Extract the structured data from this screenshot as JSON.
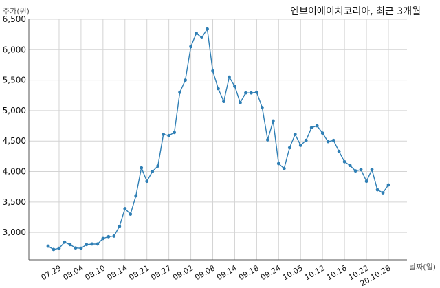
{
  "chart_data": {
    "type": "line",
    "title": "엔브이에이치코리아, 최근 3개월",
    "ylabel": "주가(원)",
    "xlabel": "날짜(일)",
    "ylim": [
      2550,
      6500
    ],
    "yticks": [
      3000,
      3500,
      4000,
      4500,
      5000,
      5500,
      6000,
      6500
    ],
    "ytick_labels": [
      "3,000",
      "3,500",
      "4,000",
      "4,500",
      "5,000",
      "5,500",
      "6,000",
      "6,500"
    ],
    "xticks": [
      {
        "index": 2,
        "label": "07.29"
      },
      {
        "index": 6,
        "label": "08.04"
      },
      {
        "index": 10,
        "label": "08.10"
      },
      {
        "index": 14,
        "label": "08.14"
      },
      {
        "index": 18,
        "label": "08.21"
      },
      {
        "index": 22,
        "label": "08.27"
      },
      {
        "index": 26,
        "label": "09.02"
      },
      {
        "index": 30,
        "label": "09.08"
      },
      {
        "index": 34,
        "label": "09.14"
      },
      {
        "index": 38,
        "label": "09.18"
      },
      {
        "index": 42,
        "label": "09.24"
      },
      {
        "index": 46,
        "label": "10.05"
      },
      {
        "index": 50,
        "label": "10.12"
      },
      {
        "index": 54,
        "label": "10.16"
      },
      {
        "index": 58,
        "label": "10.22"
      },
      {
        "index": 62,
        "label": "20.10.28"
      }
    ],
    "grid": true,
    "series": [
      {
        "color": "#2f7fb5",
        "values": [
          2775,
          2720,
          2740,
          2840,
          2800,
          2745,
          2740,
          2800,
          2810,
          2810,
          2900,
          2930,
          2940,
          3100,
          3390,
          3300,
          3600,
          4060,
          3840,
          4000,
          4090,
          4610,
          4590,
          4640,
          5300,
          5500,
          6050,
          6270,
          6200,
          6340,
          5650,
          5360,
          5150,
          5550,
          5400,
          5130,
          5290,
          5290,
          5300,
          5050,
          4520,
          4830,
          4130,
          4050,
          4390,
          4610,
          4430,
          4510,
          4720,
          4750,
          4630,
          4490,
          4510,
          4330,
          4160,
          4100,
          4010,
          4030,
          3840,
          4030,
          3700,
          3650,
          3780
        ]
      }
    ]
  }
}
